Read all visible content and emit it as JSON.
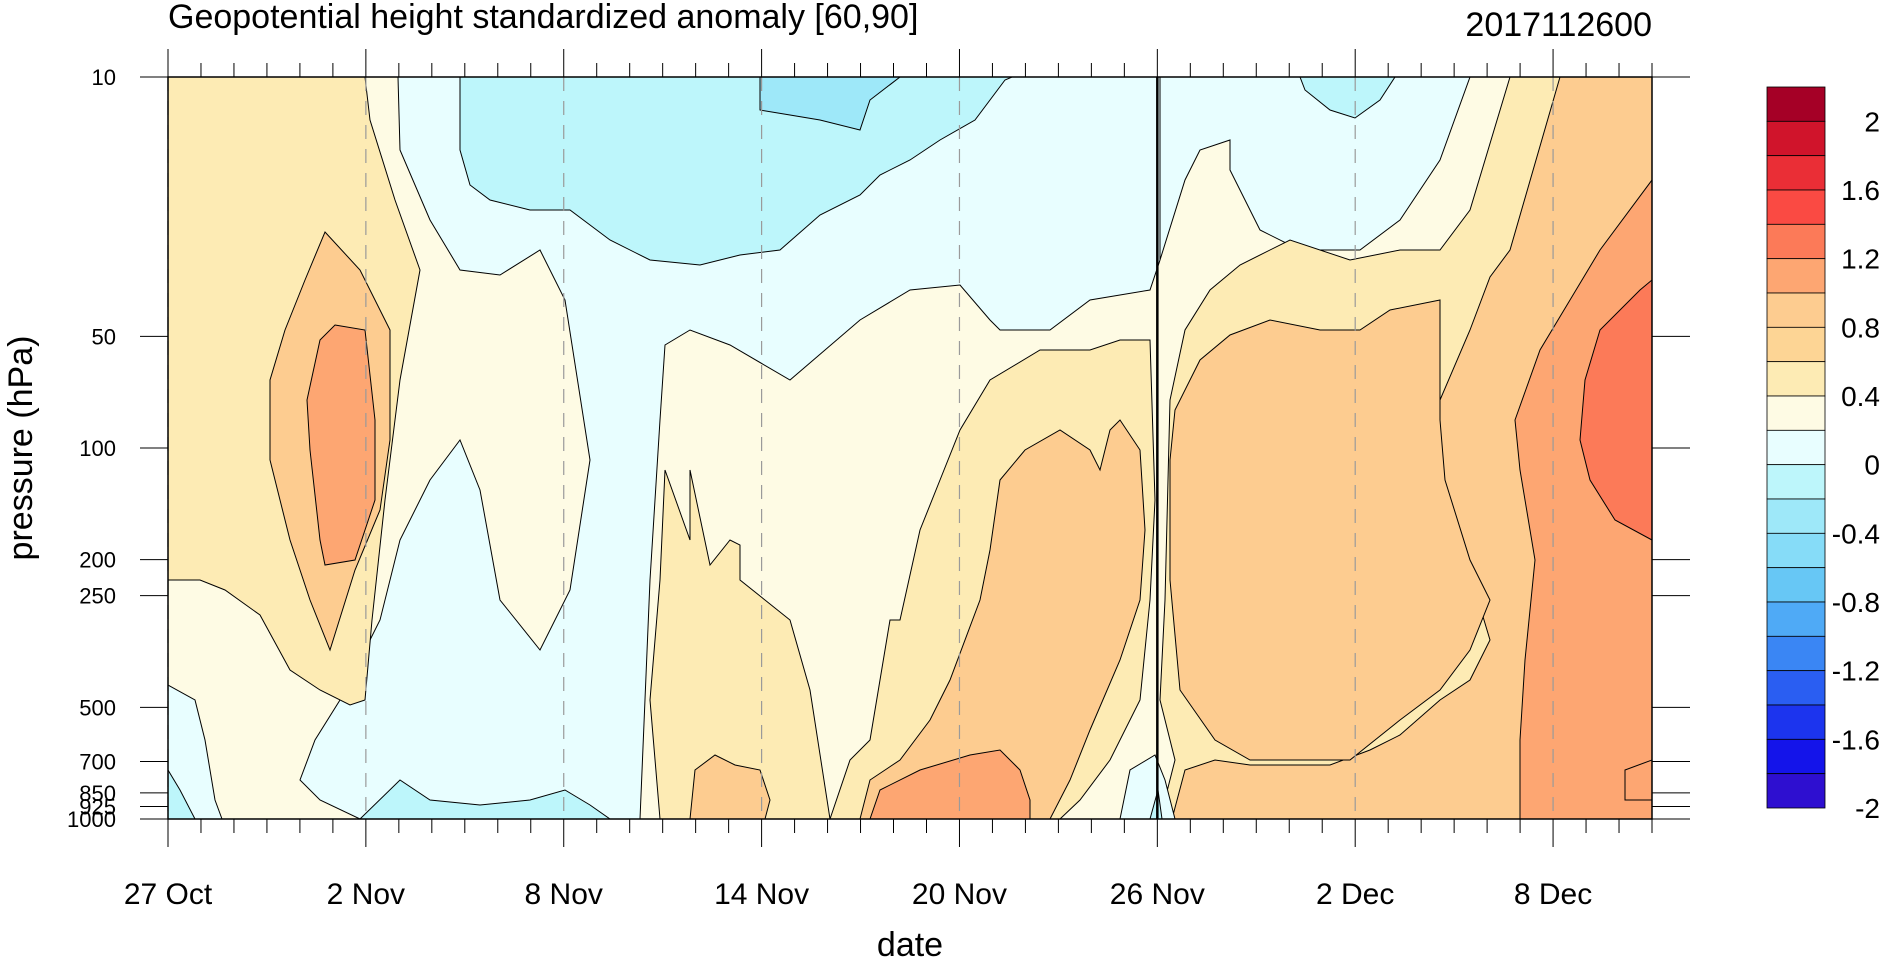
{
  "chart_data": {
    "type": "heatmap",
    "title": "Geopotential height standardized anomaly [60,90]",
    "date_label": "2017112600",
    "xlabel": "date",
    "ylabel": "pressure (hPa)",
    "x_ticks": [
      "27 Oct",
      "2 Nov",
      "8 Nov",
      "14 Nov",
      "20 Nov",
      "26 Nov",
      "2 Dec",
      "8 Dec"
    ],
    "x_tick_days": [
      0,
      6,
      12,
      18,
      24,
      30,
      36,
      42
    ],
    "x_range_days": [
      0,
      45
    ],
    "analysis_day": 30,
    "y_ticks": [
      "10",
      "50",
      "100",
      "200",
      "250",
      "500",
      "700",
      "850",
      "925",
      "1000"
    ],
    "y_tick_values": [
      10,
      50,
      100,
      200,
      250,
      500,
      700,
      850,
      925,
      1000
    ],
    "y_scale": "log",
    "y_range": [
      1000,
      10
    ],
    "colorbar": {
      "labels": [
        "2",
        "1.6",
        "1.2",
        "0.8",
        "0.4",
        "0",
        "-0.4",
        "-0.8",
        "-1.2",
        "-1.6",
        "-2"
      ],
      "colors": [
        "#a50026",
        "#d0142b",
        "#ea2e36",
        "#fa4a43",
        "#fc7a58",
        "#fda672",
        "#fdcc90",
        "#fdd595",
        "#fdebb4",
        "#fefbe4",
        "#e8feff",
        "#bdf6fb",
        "#9ee8f9",
        "#86dcf8",
        "#67c7f5",
        "#4faaf6",
        "#3a86f4",
        "#2a5ef2",
        "#1c34ee",
        "#1414ea",
        "#2e0fd0"
      ]
    },
    "field_note": "Filled contours of standardized anomaly over date (x) and pressure (y)",
    "grid": "dashed vertical lines at labeled dates",
    "regions": [
      {
        "level": 0.2,
        "label_anchor": "warm",
        "days": [
          0,
          45
        ]
      },
      {
        "level": -0.2,
        "label_anchor": "cool",
        "days": [
          6,
          33
        ]
      }
    ]
  }
}
